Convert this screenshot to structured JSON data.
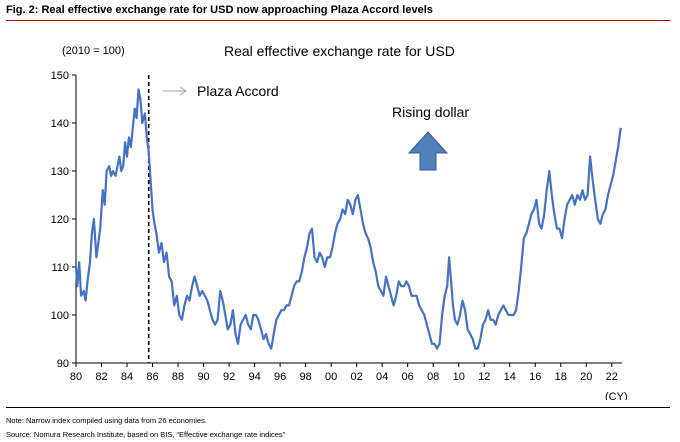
{
  "figure": {
    "title": "Fig. 2: Real effective exchange rate for USD now approaching Plaza Accord levels",
    "note": "Note: Narrow index compiled using data from 26 economies.",
    "source": "Source: Nomura Research Institute, based on BIS, “Effective exchange rate indices”"
  },
  "chart_data": {
    "type": "line",
    "title": "Real effective exchange rate for USD",
    "unit_label": "(2010 = 100)",
    "x_unit_label": "(CY)",
    "xlim": [
      1980,
      2022.8
    ],
    "ylim": [
      90,
      150
    ],
    "y_ticks": [
      90,
      100,
      110,
      120,
      130,
      140,
      150
    ],
    "x_ticks": [
      {
        "x": 1980,
        "label": "80"
      },
      {
        "x": 1982,
        "label": "82"
      },
      {
        "x": 1984,
        "label": "84"
      },
      {
        "x": 1986,
        "label": "86"
      },
      {
        "x": 1988,
        "label": "88"
      },
      {
        "x": 1990,
        "label": "90"
      },
      {
        "x": 1992,
        "label": "92"
      },
      {
        "x": 1994,
        "label": "94"
      },
      {
        "x": 1996,
        "label": "96"
      },
      {
        "x": 1998,
        "label": "98"
      },
      {
        "x": 2000,
        "label": "00"
      },
      {
        "x": 2002,
        "label": "02"
      },
      {
        "x": 2004,
        "label": "04"
      },
      {
        "x": 2006,
        "label": "06"
      },
      {
        "x": 2008,
        "label": "08"
      },
      {
        "x": 2010,
        "label": "10"
      },
      {
        "x": 2012,
        "label": "12"
      },
      {
        "x": 2014,
        "label": "14"
      },
      {
        "x": 2016,
        "label": "16"
      },
      {
        "x": 2018,
        "label": "18"
      },
      {
        "x": 2020,
        "label": "20"
      },
      {
        "x": 2022,
        "label": "22"
      }
    ],
    "series_color": "#4472c4",
    "series": [
      {
        "name": "",
        "points": [
          [
            1980.0,
            110
          ],
          [
            1980.1,
            106
          ],
          [
            1980.25,
            111
          ],
          [
            1980.4,
            104
          ],
          [
            1980.6,
            105
          ],
          [
            1980.75,
            103
          ],
          [
            1980.9,
            107
          ],
          [
            1981.1,
            111
          ],
          [
            1981.25,
            117
          ],
          [
            1981.4,
            120
          ],
          [
            1981.6,
            112
          ],
          [
            1981.75,
            115
          ],
          [
            1981.9,
            118
          ],
          [
            1982.1,
            126
          ],
          [
            1982.25,
            123
          ],
          [
            1982.4,
            130
          ],
          [
            1982.6,
            131
          ],
          [
            1982.75,
            129
          ],
          [
            1982.9,
            130
          ],
          [
            1983.1,
            129
          ],
          [
            1983.25,
            131
          ],
          [
            1983.4,
            133
          ],
          [
            1983.55,
            130
          ],
          [
            1983.7,
            131
          ],
          [
            1983.85,
            136
          ],
          [
            1984.0,
            133
          ],
          [
            1984.15,
            137
          ],
          [
            1984.3,
            135
          ],
          [
            1984.45,
            139
          ],
          [
            1984.6,
            143
          ],
          [
            1984.75,
            141
          ],
          [
            1984.9,
            147
          ],
          [
            1985.05,
            145
          ],
          [
            1985.2,
            140
          ],
          [
            1985.4,
            142
          ],
          [
            1985.55,
            137
          ],
          [
            1985.7,
            134
          ],
          [
            1985.85,
            128
          ],
          [
            1986.0,
            122
          ],
          [
            1986.15,
            119
          ],
          [
            1986.3,
            117
          ],
          [
            1986.5,
            113
          ],
          [
            1986.7,
            115
          ],
          [
            1986.9,
            111
          ],
          [
            1987.1,
            113
          ],
          [
            1987.3,
            108
          ],
          [
            1987.5,
            107
          ],
          [
            1987.7,
            102
          ],
          [
            1987.9,
            104
          ],
          [
            1988.1,
            100
          ],
          [
            1988.3,
            99
          ],
          [
            1988.5,
            102
          ],
          [
            1988.7,
            104
          ],
          [
            1988.9,
            103
          ],
          [
            1989.1,
            106
          ],
          [
            1989.3,
            108
          ],
          [
            1989.5,
            106
          ],
          [
            1989.7,
            104
          ],
          [
            1989.9,
            105
          ],
          [
            1990.1,
            104
          ],
          [
            1990.3,
            103
          ],
          [
            1990.5,
            101
          ],
          [
            1990.7,
            99
          ],
          [
            1990.9,
            98
          ],
          [
            1991.1,
            99
          ],
          [
            1991.3,
            105
          ],
          [
            1991.5,
            103
          ],
          [
            1991.7,
            100
          ],
          [
            1991.9,
            97
          ],
          [
            1992.1,
            98
          ],
          [
            1992.3,
            101
          ],
          [
            1992.5,
            96
          ],
          [
            1992.7,
            94
          ],
          [
            1992.9,
            98
          ],
          [
            1993.1,
            99
          ],
          [
            1993.3,
            100
          ],
          [
            1993.5,
            98
          ],
          [
            1993.7,
            97
          ],
          [
            1993.9,
            100
          ],
          [
            1994.1,
            100
          ],
          [
            1994.3,
            99
          ],
          [
            1994.5,
            97
          ],
          [
            1994.7,
            95
          ],
          [
            1994.9,
            96
          ],
          [
            1995.1,
            94
          ],
          [
            1995.3,
            93
          ],
          [
            1995.5,
            96
          ],
          [
            1995.7,
            99
          ],
          [
            1995.9,
            100
          ],
          [
            1996.1,
            101
          ],
          [
            1996.3,
            101
          ],
          [
            1996.5,
            102
          ],
          [
            1996.7,
            102
          ],
          [
            1996.9,
            104
          ],
          [
            1997.1,
            106
          ],
          [
            1997.3,
            107
          ],
          [
            1997.5,
            107
          ],
          [
            1997.7,
            109
          ],
          [
            1997.9,
            112
          ],
          [
            1998.1,
            114
          ],
          [
            1998.3,
            117
          ],
          [
            1998.5,
            118
          ],
          [
            1998.7,
            112
          ],
          [
            1998.9,
            111
          ],
          [
            1999.1,
            113
          ],
          [
            1999.3,
            112
          ],
          [
            1999.5,
            110
          ],
          [
            1999.7,
            112
          ],
          [
            1999.9,
            112
          ],
          [
            2000.1,
            114
          ],
          [
            2000.3,
            117
          ],
          [
            2000.5,
            119
          ],
          [
            2000.7,
            120
          ],
          [
            2000.9,
            122
          ],
          [
            2001.1,
            121
          ],
          [
            2001.3,
            124
          ],
          [
            2001.5,
            123
          ],
          [
            2001.7,
            121
          ],
          [
            2001.9,
            124
          ],
          [
            2002.1,
            125
          ],
          [
            2002.3,
            122
          ],
          [
            2002.5,
            119
          ],
          [
            2002.7,
            117
          ],
          [
            2002.9,
            116
          ],
          [
            2003.1,
            114
          ],
          [
            2003.3,
            111
          ],
          [
            2003.5,
            109
          ],
          [
            2003.7,
            106
          ],
          [
            2003.9,
            105
          ],
          [
            2004.1,
            104
          ],
          [
            2004.3,
            108
          ],
          [
            2004.5,
            106
          ],
          [
            2004.7,
            104
          ],
          [
            2004.9,
            102
          ],
          [
            2005.1,
            104
          ],
          [
            2005.3,
            107
          ],
          [
            2005.5,
            106
          ],
          [
            2005.7,
            106
          ],
          [
            2005.9,
            107
          ],
          [
            2006.1,
            106
          ],
          [
            2006.3,
            104
          ],
          [
            2006.5,
            104
          ],
          [
            2006.7,
            104
          ],
          [
            2006.9,
            102
          ],
          [
            2007.1,
            101
          ],
          [
            2007.3,
            100
          ],
          [
            2007.5,
            98
          ],
          [
            2007.7,
            96
          ],
          [
            2007.9,
            94
          ],
          [
            2008.1,
            94
          ],
          [
            2008.3,
            93
          ],
          [
            2008.5,
            94
          ],
          [
            2008.7,
            100
          ],
          [
            2008.9,
            104
          ],
          [
            2009.1,
            106
          ],
          [
            2009.25,
            112
          ],
          [
            2009.4,
            107
          ],
          [
            2009.55,
            102
          ],
          [
            2009.7,
            99
          ],
          [
            2009.9,
            98
          ],
          [
            2010.1,
            100
          ],
          [
            2010.3,
            103
          ],
          [
            2010.5,
            101
          ],
          [
            2010.7,
            97
          ],
          [
            2010.9,
            96
          ],
          [
            2011.1,
            95
          ],
          [
            2011.3,
            93
          ],
          [
            2011.5,
            93
          ],
          [
            2011.7,
            95
          ],
          [
            2011.9,
            98
          ],
          [
            2012.1,
            99
          ],
          [
            2012.3,
            101
          ],
          [
            2012.5,
            99
          ],
          [
            2012.7,
            99
          ],
          [
            2012.9,
            98
          ],
          [
            2013.1,
            100
          ],
          [
            2013.3,
            101
          ],
          [
            2013.5,
            102
          ],
          [
            2013.7,
            101
          ],
          [
            2013.9,
            100
          ],
          [
            2014.1,
            100
          ],
          [
            2014.3,
            100
          ],
          [
            2014.5,
            101
          ],
          [
            2014.7,
            105
          ],
          [
            2014.9,
            110
          ],
          [
            2015.1,
            116
          ],
          [
            2015.3,
            117
          ],
          [
            2015.5,
            119
          ],
          [
            2015.7,
            121
          ],
          [
            2015.9,
            122
          ],
          [
            2016.1,
            124
          ],
          [
            2016.3,
            119
          ],
          [
            2016.5,
            118
          ],
          [
            2016.7,
            121
          ],
          [
            2016.9,
            126
          ],
          [
            2017.1,
            130
          ],
          [
            2017.3,
            125
          ],
          [
            2017.5,
            121
          ],
          [
            2017.7,
            118
          ],
          [
            2017.9,
            118
          ],
          [
            2018.1,
            116
          ],
          [
            2018.3,
            120
          ],
          [
            2018.5,
            123
          ],
          [
            2018.7,
            124
          ],
          [
            2018.9,
            125
          ],
          [
            2019.1,
            123
          ],
          [
            2019.3,
            125
          ],
          [
            2019.5,
            124
          ],
          [
            2019.7,
            126
          ],
          [
            2019.9,
            124
          ],
          [
            2020.1,
            125
          ],
          [
            2020.3,
            133
          ],
          [
            2020.5,
            128
          ],
          [
            2020.7,
            124
          ],
          [
            2020.9,
            120
          ],
          [
            2021.1,
            119
          ],
          [
            2021.3,
            121
          ],
          [
            2021.5,
            122
          ],
          [
            2021.7,
            125
          ],
          [
            2021.9,
            127
          ],
          [
            2022.1,
            129
          ],
          [
            2022.3,
            132
          ],
          [
            2022.5,
            135
          ],
          [
            2022.7,
            139
          ]
        ]
      }
    ],
    "annotations": {
      "plaza_accord": {
        "label": "Plaza Accord",
        "x": 1985.7
      },
      "rising_dollar": {
        "label": "Rising dollar"
      }
    }
  }
}
